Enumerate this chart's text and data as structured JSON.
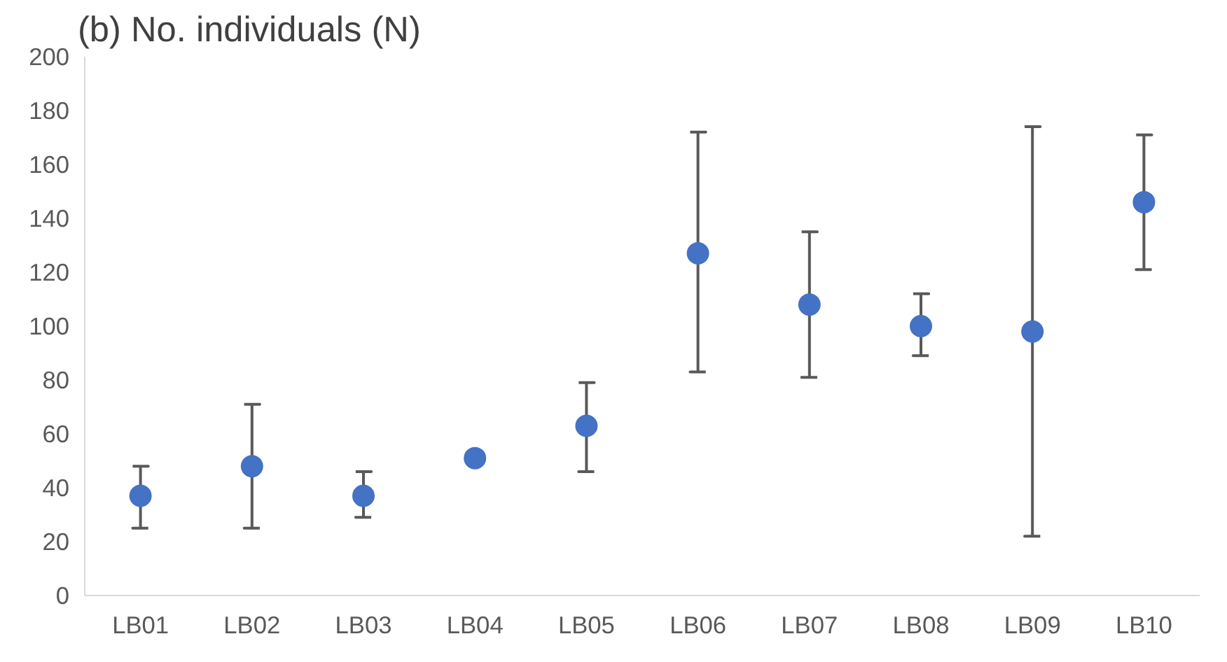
{
  "chart_data": {
    "type": "scatter",
    "title": "(b) No. individuals (N)",
    "categories": [
      "LB01",
      "LB02",
      "LB03",
      "LB04",
      "LB05",
      "LB06",
      "LB07",
      "LB08",
      "LB09",
      "LB10"
    ],
    "series": [
      {
        "color": "#4472c4",
        "values": [
          37,
          48,
          37,
          51,
          63,
          127,
          108,
          100,
          98,
          146
        ],
        "errors": [
          [
            25,
            48
          ],
          [
            25,
            71
          ],
          [
            29,
            46
          ],
          null,
          [
            46,
            79
          ],
          [
            83,
            172
          ],
          [
            81,
            135
          ],
          [
            89,
            112
          ],
          [
            22,
            174
          ],
          [
            121,
            171
          ]
        ]
      }
    ],
    "ylim": [
      0,
      200
    ],
    "yticks": [
      0,
      20,
      40,
      60,
      80,
      100,
      120,
      140,
      160,
      180,
      200
    ],
    "grid": false,
    "marker": "circle"
  }
}
